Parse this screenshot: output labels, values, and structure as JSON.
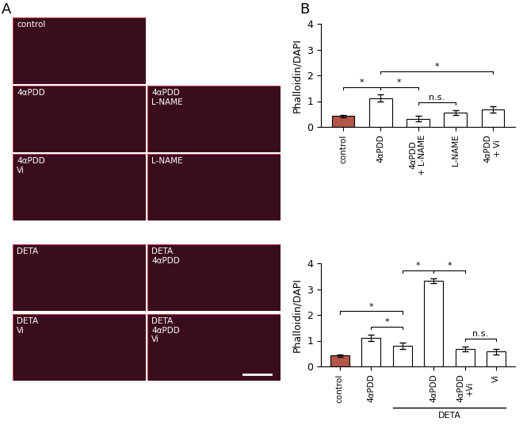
{
  "panel_labels": [
    "A",
    "B"
  ],
  "images": [
    "control",
    "4αPDD",
    "4αPDD\nL-NAME",
    "4αPDD\nVi",
    "L-NAME",
    "DETA",
    "DETA\n4αPDD",
    "DETA\nVi",
    "DETA\n4αPDD\nVi"
  ],
  "chart_data": [
    {
      "type": "bar",
      "y_label": "Phalloidin/DAPI",
      "categories": [
        "control",
        "4αPDD",
        "4αPDD\n+ L-NAME",
        "L-NAME",
        "4αPDD\n+ Vi"
      ],
      "values": [
        0.42,
        1.12,
        0.32,
        0.55,
        0.68
      ],
      "errors": [
        0.05,
        0.13,
        0.1,
        0.1,
        0.12
      ],
      "colors": [
        "#b5564a",
        "#ffffff",
        "#ffffff",
        "#ffffff",
        "#ffffff"
      ],
      "ylim": [
        0,
        4
      ],
      "yticks": [
        0,
        1,
        2,
        3,
        4
      ],
      "significance": [
        {
          "pair": [
            0,
            1
          ],
          "label": "*"
        },
        {
          "pair": [
            1,
            2
          ],
          "label": "*"
        },
        {
          "pair": [
            2,
            3
          ],
          "label": "n.s."
        },
        {
          "pair": [
            1,
            4
          ],
          "label": "*"
        }
      ]
    },
    {
      "type": "bar",
      "y_label": "Phalloidin/DAPI",
      "categories": [
        "control",
        "4αPDD",
        null,
        "4αPDD",
        "4αPDD\n+Vi",
        "Vi"
      ],
      "values": [
        0.42,
        1.12,
        0.8,
        3.32,
        0.68,
        0.57
      ],
      "errors": [
        0.04,
        0.12,
        0.13,
        0.1,
        0.1,
        0.12
      ],
      "colors": [
        "#b5564a",
        "#ffffff",
        "#ffffff",
        "#ffffff",
        "#ffffff",
        "#ffffff"
      ],
      "ylim": [
        0,
        4
      ],
      "yticks": [
        0,
        1,
        2,
        3,
        4
      ],
      "group": {
        "label": "DETA",
        "from": 2,
        "to": 5
      },
      "significance": [
        {
          "pair": [
            0,
            2
          ],
          "label": "*"
        },
        {
          "pair": [
            1,
            2
          ],
          "label": "*"
        },
        {
          "pair": [
            2,
            3
          ],
          "label": "*"
        },
        {
          "pair": [
            3,
            4
          ],
          "label": "*"
        },
        {
          "pair": [
            4,
            5
          ],
          "label": "n.s."
        }
      ]
    }
  ]
}
